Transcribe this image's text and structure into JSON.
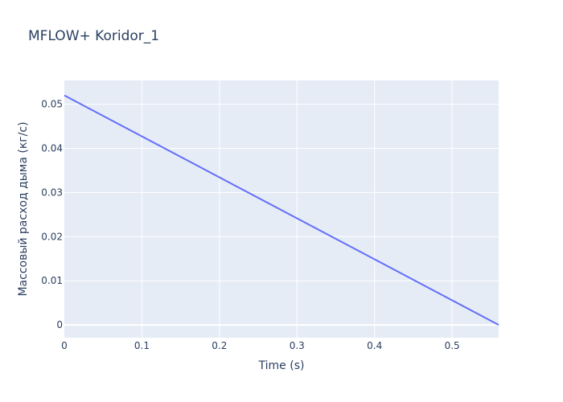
{
  "chart_data": {
    "type": "line",
    "title": "MFLOW+ Koridor_1",
    "xlabel": "Time (s)",
    "ylabel": "Массовый расход дыма (кг/с)",
    "xlim": [
      0,
      0.56
    ],
    "ylim": [
      -0.0029,
      0.0554
    ],
    "x_ticks": [
      0,
      0.1,
      0.2,
      0.3,
      0.4,
      0.5
    ],
    "x_tick_labels": [
      "0",
      "0.1",
      "0.2",
      "0.3",
      "0.4",
      "0.5"
    ],
    "y_ticks": [
      0,
      0.01,
      0.02,
      0.03,
      0.04,
      0.05
    ],
    "y_tick_labels": [
      "0",
      "0.01",
      "0.02",
      "0.03",
      "0.04",
      "0.05"
    ],
    "grid": true,
    "legend": "none",
    "series": [
      {
        "color": "#636efa",
        "x": [
          0,
          0.56
        ],
        "y": [
          0.052,
          0
        ]
      }
    ],
    "colors": {
      "plot_background": "#e5ecf6",
      "grid": "#ffffff",
      "text": "#2a3f5f"
    }
  }
}
